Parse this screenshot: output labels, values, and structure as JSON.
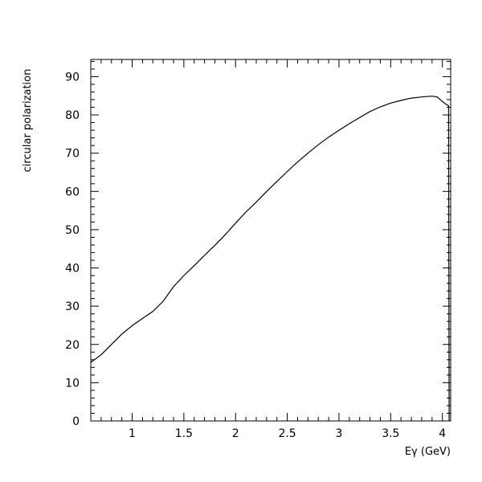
{
  "chart_data": {
    "type": "line",
    "title": "",
    "xlabel": "Eγ (GeV)",
    "ylabel": "circular polarization",
    "xlim": [
      0.6,
      4.08
    ],
    "ylim": [
      0,
      94.5
    ],
    "x_ticks": [
      1,
      1.5,
      2,
      2.5,
      3,
      3.5,
      4
    ],
    "x_tick_labels": [
      "1",
      "1.5",
      "2",
      "2.5",
      "3",
      "3.5",
      "4"
    ],
    "y_ticks": [
      0,
      10,
      20,
      30,
      40,
      50,
      60,
      70,
      80,
      90
    ],
    "y_tick_labels": [
      "0",
      "10",
      "20",
      "30",
      "40",
      "50",
      "60",
      "70",
      "80",
      "90"
    ],
    "grid": false,
    "legend": "none",
    "series": [
      {
        "color": "#000000",
        "x": [
          0.6,
          0.7,
          0.8,
          0.9,
          1.0,
          1.1,
          1.2,
          1.3,
          1.4,
          1.5,
          1.6,
          1.7,
          1.8,
          1.9,
          2.0,
          2.1,
          2.2,
          2.3,
          2.4,
          2.5,
          2.6,
          2.7,
          2.8,
          2.9,
          3.0,
          3.1,
          3.2,
          3.3,
          3.4,
          3.5,
          3.6,
          3.7,
          3.8,
          3.9,
          3.95,
          4.0,
          4.04,
          4.06,
          4.065
        ],
        "y": [
          15.3,
          17.3,
          20.0,
          22.7,
          24.9,
          26.8,
          28.6,
          31.3,
          35.1,
          38.0,
          40.6,
          43.3,
          45.9,
          48.7,
          51.7,
          54.6,
          57.2,
          60.0,
          62.6,
          65.2,
          67.7,
          70.0,
          72.2,
          74.2,
          76.0,
          77.7,
          79.3,
          80.9,
          82.1,
          83.1,
          83.8,
          84.4,
          84.7,
          84.9,
          84.7,
          83.5,
          82.7,
          82.4,
          0
        ]
      }
    ]
  }
}
